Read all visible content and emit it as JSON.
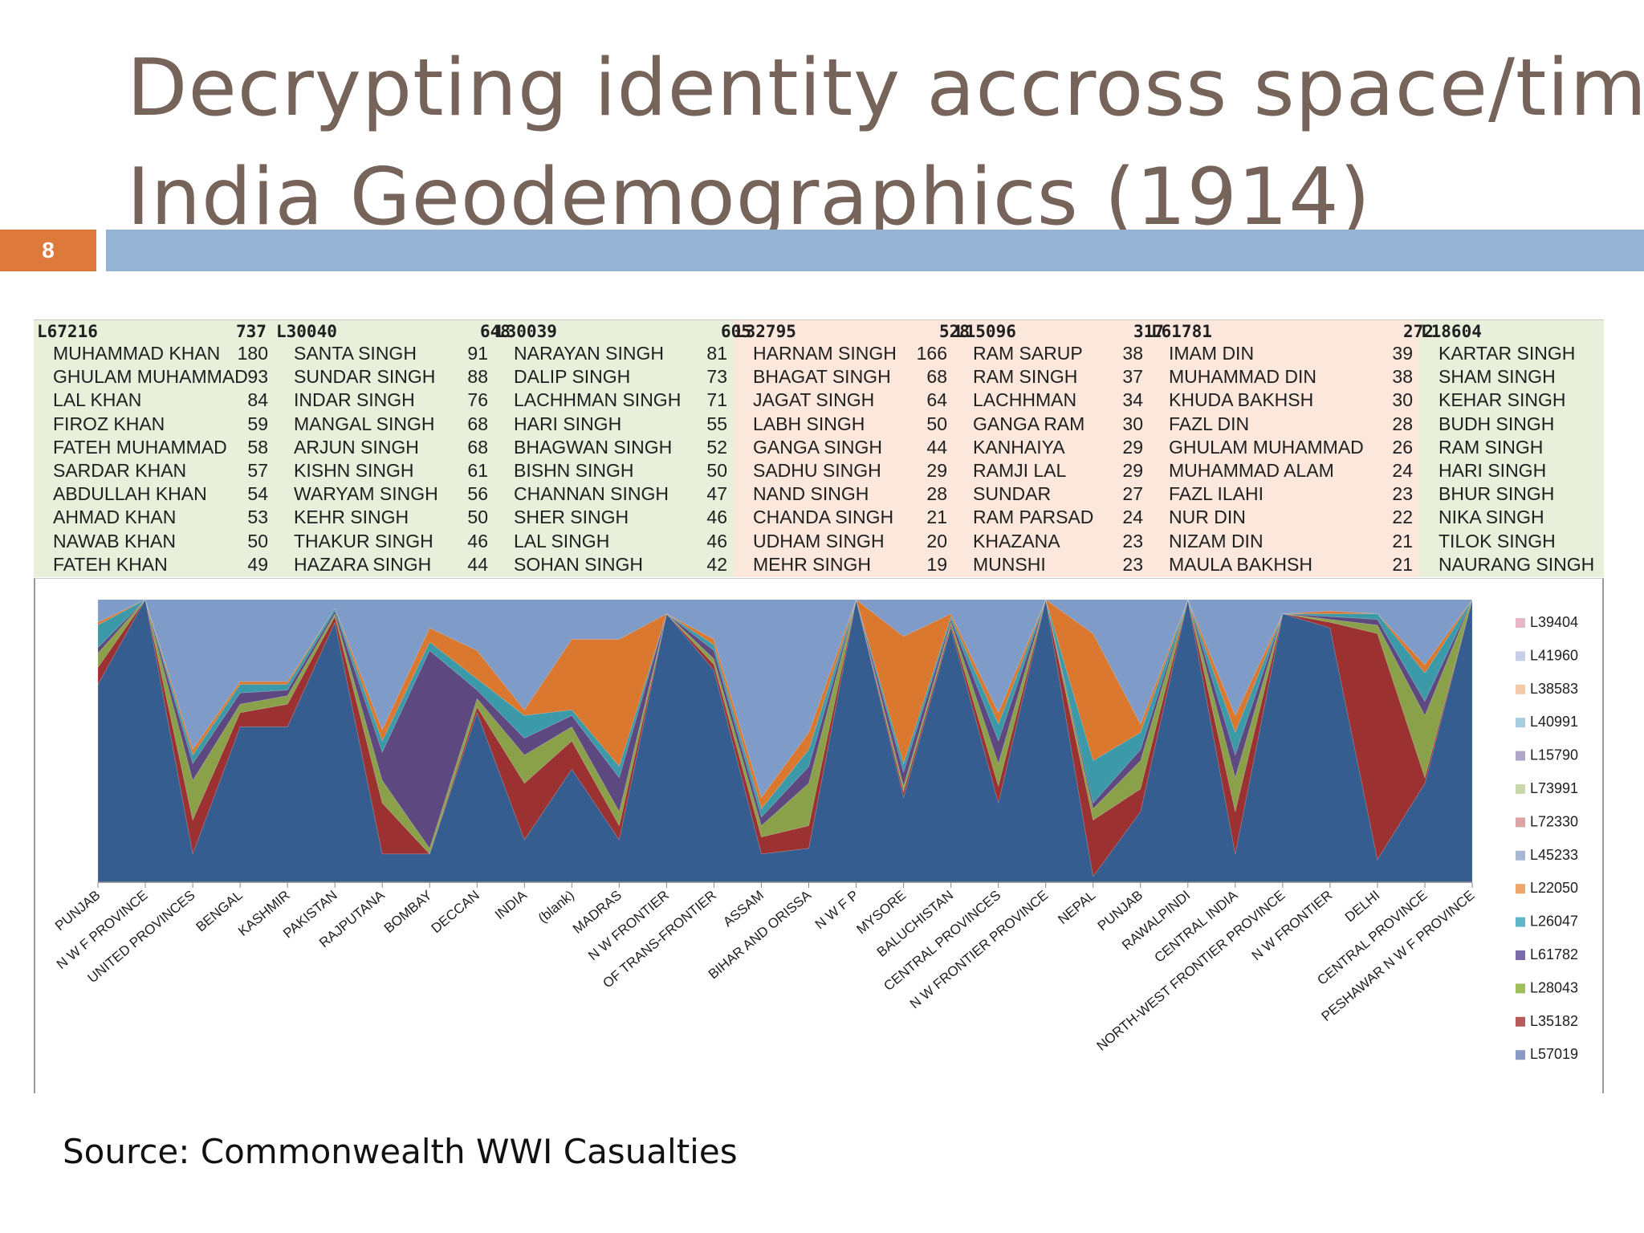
{
  "slide": {
    "title_line1": "Decrypting identity accross space/time:",
    "title_line2": "India Geodemographics (1914)",
    "slide_number": "8",
    "source": "Source: Commonwealth WWI Casualties",
    "colors": {
      "title": "#76635a",
      "number_box": "#dd7a3b",
      "accent_bar": "#95b4d4"
    }
  },
  "table": {
    "groups": [
      {
        "label": "L67216",
        "count": "",
        "bg": "green",
        "names": [
          "MUHAMMAD KHAN",
          "GHULAM MUHAMMAD",
          "LAL KHAN",
          "FIROZ KHAN",
          "FATEH MUHAMMAD",
          "SARDAR KHAN",
          "ABDULLAH KHAN",
          "AHMAD KHAN",
          "NAWAB KHAN",
          "FATEH KHAN"
        ],
        "counts": [
          "180",
          "93",
          "84",
          "59",
          "58",
          "57",
          "54",
          "53",
          "50",
          "49"
        ]
      },
      {
        "label": "L30040",
        "count": "737",
        "bg": "green",
        "names": [
          "SANTA SINGH",
          "SUNDAR SINGH",
          "INDAR SINGH",
          "MANGAL SINGH",
          "ARJUN SINGH",
          "KISHN SINGH",
          "WARYAM SINGH",
          "KEHR SINGH",
          "THAKUR SINGH",
          "HAZARA SINGH"
        ],
        "counts": [
          "91",
          "88",
          "76",
          "68",
          "68",
          "61",
          "56",
          "50",
          "46",
          "44"
        ]
      },
      {
        "label": "L30039",
        "count": "648",
        "bg": "green",
        "names": [
          "NARAYAN SINGH",
          "DALIP SINGH",
          "LACHHMAN SINGH",
          "HARI SINGH",
          "BHAGWAN SINGH",
          "BISHN SINGH",
          "CHANNAN SINGH",
          "SHER SINGH",
          "LAL SINGH",
          "SOHAN SINGH"
        ],
        "counts": [
          "81",
          "73",
          "71",
          "55",
          "52",
          "50",
          "47",
          "46",
          "46",
          "42"
        ]
      },
      {
        "label": "L32795",
        "count": "605",
        "bg": "pink",
        "names": [
          "HARNAM SINGH",
          "BHAGAT SINGH",
          "JAGAT SINGH",
          "LABH SINGH",
          "GANGA SINGH",
          "SADHU SINGH",
          "NAND SINGH",
          "CHANDA SINGH",
          "UDHAM SINGH",
          "MEHR SINGH"
        ],
        "counts": [
          "166",
          "68",
          "64",
          "50",
          "44",
          "29",
          "28",
          "21",
          "20",
          "19"
        ]
      },
      {
        "label": "L15096",
        "count": "528",
        "bg": "pink",
        "names": [
          "RAM SARUP",
          "RAM SINGH",
          "LACHHMAN",
          "GANGA RAM",
          "KANHAIYA",
          "RAMJI LAL",
          "SUNDAR",
          "RAM PARSAD",
          "KHAZANA",
          "MUNSHI"
        ],
        "counts": [
          "38",
          "37",
          "34",
          "30",
          "29",
          "29",
          "27",
          "24",
          "23",
          "23"
        ]
      },
      {
        "label": "L61781",
        "count": "317",
        "bg": "pink",
        "names": [
          "IMAM DIN",
          "MUHAMMAD DIN",
          "KHUDA BAKHSH",
          "FAZL DIN",
          "GHULAM MUHAMMAD",
          "MUHAMMAD ALAM",
          "FAZL ILAHI",
          "NUR DIN",
          "NIZAM DIN",
          "MAULA BAKHSH"
        ],
        "counts": [
          "39",
          "38",
          "30",
          "28",
          "26",
          "24",
          "23",
          "22",
          "21",
          "21"
        ]
      },
      {
        "label": "L18604",
        "count": "272",
        "bg": "green",
        "names": [
          "KARTAR SINGH",
          "SHAM SINGH",
          "KEHAR SINGH",
          "BUDH SINGH",
          "RAM SINGH",
          "HARI SINGH",
          "BHUR SINGH",
          "NIKA SINGH",
          "TILOK SINGH",
          "NAURANG SINGH"
        ],
        "counts": [
          "",
          "",
          "",
          "",
          "",
          "",
          "",
          "",
          "",
          ""
        ]
      }
    ]
  },
  "chart_data": {
    "type": "area",
    "stacked": "100%",
    "title": "",
    "xlabel": "",
    "ylabel": "",
    "categories": [
      "PUNJAB",
      "N W F PROVINCE",
      "UNITED PROVINCES",
      "BENGAL",
      "KASHMIR",
      "PAKISTAN",
      "RAJPUTANA",
      "BOMBAY",
      "DECCAN",
      "INDIA",
      "(blank)",
      "MADRAS",
      "N W FRONTIER",
      "OF TRANS-FRONTIER",
      "ASSAM",
      "BIHAR AND ORISSA",
      "N W F P",
      "MYSORE",
      "BALUCHISTAN",
      "CENTRAL PROVINCES",
      "N W FRONTIER PROVINCE",
      "NEPAL",
      "PUNJAB",
      "RAWALPINDI",
      "CENTRAL INDIA",
      "NORTH-WEST FRONTIER PROVINCE",
      "N W FRONTIER",
      "DELHI",
      "CENTRAL PROVINCE",
      "PESHAWAR N W F PROVINCE"
    ],
    "legend_position": "right",
    "legend_entries": [
      "L39404",
      "L41960",
      "L38583",
      "L40991",
      "L15790",
      "L73991",
      "L72330",
      "L45233",
      "L22050",
      "L26047",
      "L61782",
      "L28043",
      "L35182",
      "L57019"
    ],
    "legend_colors": [
      "#e8b8c8",
      "#c7d0e6",
      "#f5c9a8",
      "#a9cde0",
      "#b0a6c8",
      "#c9d8a8",
      "#dba3a3",
      "#a7b7d4",
      "#f0a56a",
      "#5fb6c8",
      "#7b6aa8",
      "#9fbf5a",
      "#b95a5a",
      "#8a9ac4"
    ],
    "series": [
      {
        "name": "L67216",
        "color": "#365d8f",
        "values": [
          70,
          100,
          10,
          55,
          55,
          92,
          10,
          10,
          60,
          15,
          40,
          15,
          95,
          75,
          10,
          12,
          100,
          30,
          90,
          28,
          100,
          2,
          25,
          100,
          10,
          95,
          90,
          8,
          35,
          100
        ]
      },
      {
        "name": "L30040",
        "color": "#9c3131",
        "values": [
          6,
          0,
          12,
          5,
          8,
          2,
          18,
          0,
          2,
          20,
          10,
          5,
          0,
          2,
          6,
          8,
          0,
          2,
          1,
          6,
          0,
          20,
          8,
          0,
          15,
          0,
          2,
          80,
          2,
          0
        ]
      },
      {
        "name": "L30039",
        "color": "#8aa14a",
        "values": [
          5,
          0,
          14,
          3,
          3,
          1,
          8,
          2,
          3,
          10,
          5,
          5,
          0,
          2,
          4,
          15,
          0,
          2,
          1,
          8,
          0,
          4,
          10,
          0,
          12,
          0,
          1,
          3,
          22,
          0
        ]
      },
      {
        "name": "L32795",
        "color": "#5d4880",
        "values": [
          2,
          0,
          6,
          4,
          2,
          1,
          10,
          70,
          3,
          6,
          4,
          12,
          0,
          3,
          3,
          6,
          0,
          5,
          1,
          8,
          0,
          2,
          4,
          0,
          8,
          0,
          1,
          2,
          5,
          0
        ]
      },
      {
        "name": "L15096",
        "color": "#3c9aa8",
        "values": [
          8,
          0,
          3,
          3,
          2,
          1,
          4,
          3,
          4,
          8,
          2,
          4,
          0,
          2,
          3,
          6,
          0,
          3,
          1,
          6,
          0,
          15,
          6,
          0,
          8,
          0,
          1,
          2,
          10,
          0
        ]
      },
      {
        "name": "L61781",
        "color": "#d9782e",
        "values": [
          1,
          0,
          2,
          1,
          1,
          0,
          4,
          5,
          10,
          2,
          25,
          45,
          0,
          2,
          4,
          6,
          0,
          45,
          1,
          4,
          0,
          45,
          3,
          0,
          6,
          0,
          1,
          0,
          3,
          0
        ]
      },
      {
        "name": "L18604",
        "color": "#7f9bc7",
        "values": [
          8,
          0,
          53,
          29,
          29,
          3,
          46,
          10,
          18,
          39,
          14,
          14,
          5,
          14,
          70,
          47,
          0,
          13,
          5,
          40,
          0,
          12,
          44,
          0,
          41,
          5,
          4,
          5,
          23,
          0
        ]
      }
    ]
  }
}
